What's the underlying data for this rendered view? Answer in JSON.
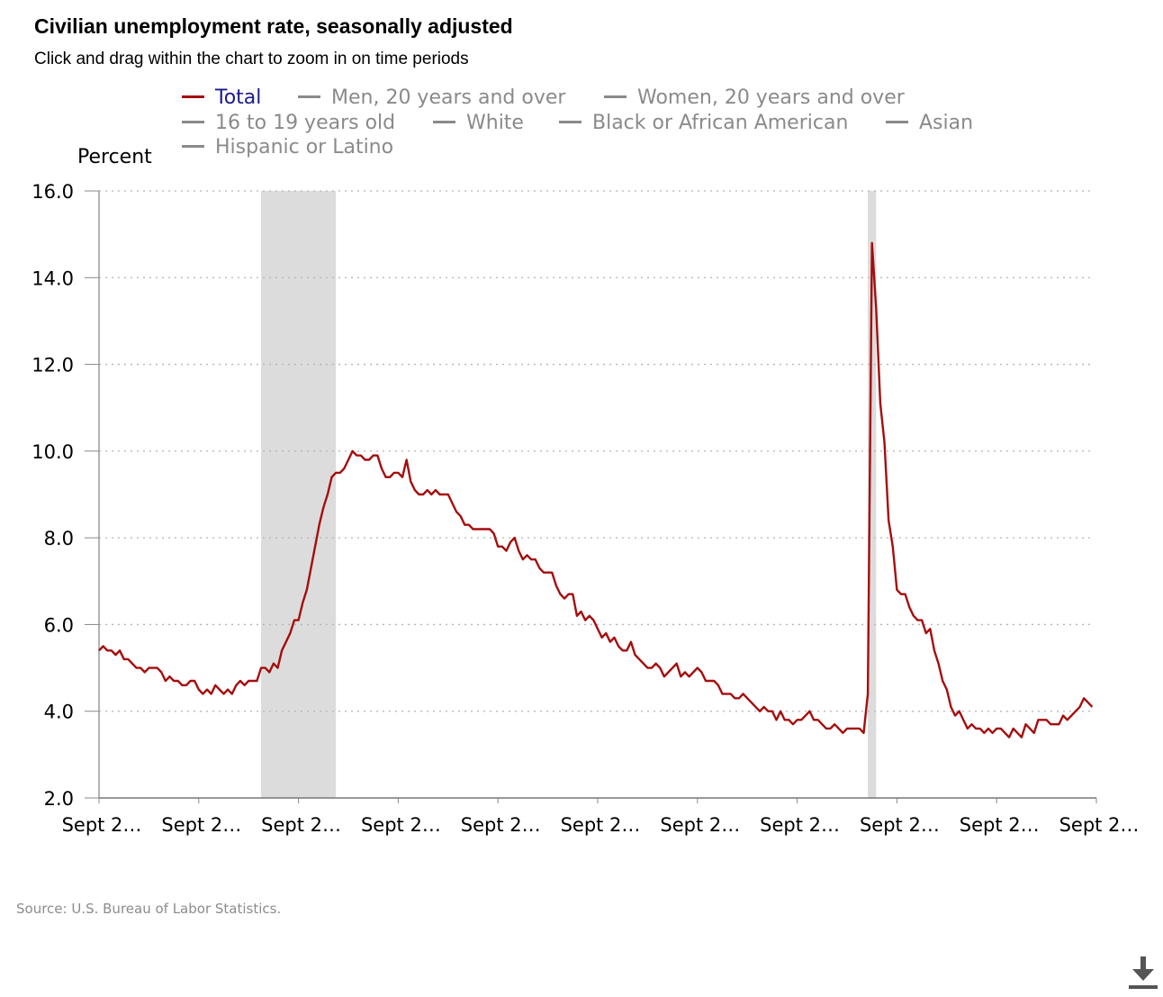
{
  "header": {
    "title": "Civilian unemployment rate, seasonally adjusted",
    "subtitle": "Click and drag within the chart to zoom in on time periods"
  },
  "legend": {
    "items": [
      {
        "label": "Total",
        "active": true
      },
      {
        "label": "Men, 20 years and over",
        "active": false
      },
      {
        "label": "Women, 20 years and over",
        "active": false
      },
      {
        "label": "16 to 19 years old",
        "active": false
      },
      {
        "label": "White",
        "active": false
      },
      {
        "label": "Black or African American",
        "active": false
      },
      {
        "label": "Asian",
        "active": false
      },
      {
        "label": "Hispanic or Latino",
        "active": false
      }
    ]
  },
  "footer": {
    "source": "Source: U.S. Bureau of Labor Statistics."
  },
  "icons": {
    "download": "download-icon"
  },
  "colors": {
    "series_total": "#a50d0d",
    "legend_active_text": "#1a1a8c",
    "legend_inactive": "#8a8a8a",
    "recession_band": "#dcdcdc",
    "grid": "#b4b4b4"
  },
  "chart_data": {
    "type": "line",
    "title": "Civilian unemployment rate, seasonally adjusted",
    "ylabel": "Percent",
    "xlabel": "",
    "ylim": [
      2.0,
      16.0
    ],
    "y_ticks": [
      "2.0",
      "4.0",
      "6.0",
      "8.0",
      "10.0",
      "12.0",
      "14.0",
      "16.0"
    ],
    "x_tick_labels": [
      "Sept 2…",
      "Sept 2…",
      "Sept 2…",
      "Sept 2…",
      "Sept 2…",
      "Sept 2…",
      "Sept 2…",
      "Sept 2…",
      "Sept 2…",
      "Sept 2…",
      "Sept 2…"
    ],
    "x_range": [
      "2004-09",
      "2024-09"
    ],
    "grid": "horizontal dotted",
    "legend_placement": "top",
    "shaded_periods": [
      {
        "start": "2007-12",
        "end": "2009-06"
      },
      {
        "start": "2020-02",
        "end": "2020-04"
      }
    ],
    "series": [
      {
        "name": "Total",
        "start": "2004-09",
        "frequency": "monthly",
        "values": [
          5.4,
          5.5,
          5.4,
          5.4,
          5.3,
          5.4,
          5.2,
          5.2,
          5.1,
          5.0,
          5.0,
          4.9,
          5.0,
          5.0,
          5.0,
          4.9,
          4.7,
          4.8,
          4.7,
          4.7,
          4.6,
          4.6,
          4.7,
          4.7,
          4.5,
          4.4,
          4.5,
          4.4,
          4.6,
          4.5,
          4.4,
          4.5,
          4.4,
          4.6,
          4.7,
          4.6,
          4.7,
          4.7,
          4.7,
          5.0,
          5.0,
          4.9,
          5.1,
          5.0,
          5.4,
          5.6,
          5.8,
          6.1,
          6.1,
          6.5,
          6.8,
          7.3,
          7.8,
          8.3,
          8.7,
          9.0,
          9.4,
          9.5,
          9.5,
          9.6,
          9.8,
          10.0,
          9.9,
          9.9,
          9.8,
          9.8,
          9.9,
          9.9,
          9.6,
          9.4,
          9.4,
          9.5,
          9.5,
          9.4,
          9.8,
          9.3,
          9.1,
          9.0,
          9.0,
          9.1,
          9.0,
          9.1,
          9.0,
          9.0,
          9.0,
          8.8,
          8.6,
          8.5,
          8.3,
          8.3,
          8.2,
          8.2,
          8.2,
          8.2,
          8.2,
          8.1,
          7.8,
          7.8,
          7.7,
          7.9,
          8.0,
          7.7,
          7.5,
          7.6,
          7.5,
          7.5,
          7.3,
          7.2,
          7.2,
          7.2,
          6.9,
          6.7,
          6.6,
          6.7,
          6.7,
          6.2,
          6.3,
          6.1,
          6.2,
          6.1,
          5.9,
          5.7,
          5.8,
          5.6,
          5.7,
          5.5,
          5.4,
          5.4,
          5.6,
          5.3,
          5.2,
          5.1,
          5.0,
          5.0,
          5.1,
          5.0,
          4.8,
          4.9,
          5.0,
          5.1,
          4.8,
          4.9,
          4.8,
          4.9,
          5.0,
          4.9,
          4.7,
          4.7,
          4.7,
          4.6,
          4.4,
          4.4,
          4.4,
          4.3,
          4.3,
          4.4,
          4.3,
          4.2,
          4.1,
          4.0,
          4.1,
          4.0,
          4.0,
          3.8,
          4.0,
          3.8,
          3.8,
          3.7,
          3.8,
          3.8,
          3.9,
          4.0,
          3.8,
          3.8,
          3.7,
          3.6,
          3.6,
          3.7,
          3.6,
          3.5,
          3.6,
          3.6,
          3.6,
          3.6,
          3.5,
          4.4,
          14.8,
          13.3,
          11.1,
          10.2,
          8.4,
          7.8,
          6.8,
          6.7,
          6.7,
          6.4,
          6.2,
          6.1,
          6.1,
          5.8,
          5.9,
          5.4,
          5.1,
          4.7,
          4.5,
          4.1,
          3.9,
          4.0,
          3.8,
          3.6,
          3.7,
          3.6,
          3.6,
          3.5,
          3.6,
          3.5,
          3.6,
          3.6,
          3.5,
          3.4,
          3.6,
          3.5,
          3.4,
          3.7,
          3.6,
          3.5,
          3.8,
          3.8,
          3.8,
          3.7,
          3.7,
          3.7,
          3.9,
          3.8,
          3.9,
          4.0,
          4.1,
          4.3,
          4.2,
          4.1
        ]
      }
    ]
  }
}
